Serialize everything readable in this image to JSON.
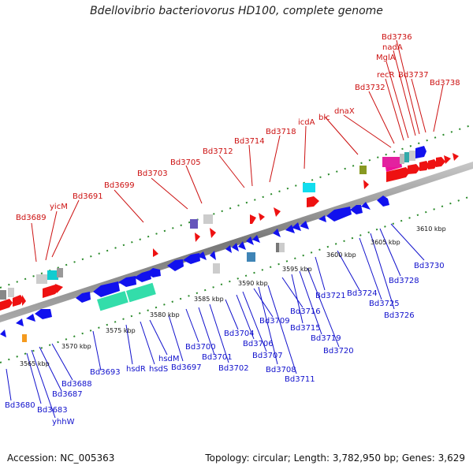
{
  "title": "Bdellovibrio bacteriovorus HD100, complete genome",
  "footer": {
    "accession": "Accession: NC_005363",
    "topology": "Topology: circular; Length: 3,782,950 bp; Genes: 3,629"
  },
  "colors": {
    "forward_label": "#cc1111",
    "reverse_label": "#1111cc",
    "forward_gene": "#ee1111",
    "reverse_gene": "#1111ee",
    "backbone": "#888888",
    "tick_dots": "#228822",
    "callout_line_fwd": "#cc1111",
    "callout_line_rev": "#1111cc"
  },
  "scale_labels": [
    "3565 kbp",
    "3570 kbp",
    "3575 kbp",
    "3580 kbp",
    "3585 kbp",
    "3590 kbp",
    "3595 kbp",
    "3600 kbp",
    "3605 kbp",
    "3610 kbp"
  ],
  "forward_labels": [
    "Bd3689",
    "yicM",
    "Bd3691",
    "Bd3699",
    "Bd3703",
    "Bd3705",
    "Bd3712",
    "Bd3714",
    "Bd3718",
    "icdA",
    "blc",
    "dnaX",
    "Bd3732",
    "recR",
    "MglA",
    "nadA",
    "Bd3736",
    "Bd3737",
    "Bd3738"
  ],
  "reverse_labels": [
    "Bd3680",
    "Bd3683",
    "yhhW",
    "Bd3687",
    "Bd3688",
    "Bd3693",
    "hsdR",
    "hsdS",
    "hsdM",
    "Bd3697",
    "Bd3700",
    "Bd3701",
    "Bd3702",
    "Bd3704",
    "Bd3706",
    "Bd3707",
    "Bd3709",
    "Bd3708",
    "Bd3711",
    "Bd3716",
    "Bd3715",
    "Bd3719",
    "Bd3720",
    "Bd3721",
    "Bd3724",
    "Bd3725",
    "Bd3726",
    "Bd3728",
    "Bd3730"
  ]
}
